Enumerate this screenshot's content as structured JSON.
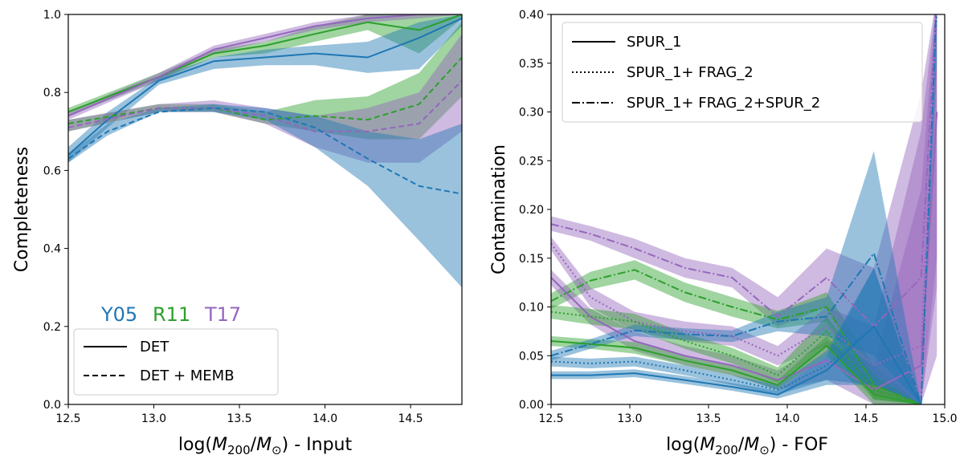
{
  "chart_data": [
    {
      "type": "line",
      "title": "",
      "ylabel": "Completeness",
      "xlabel_parts": [
        "log(",
        "M",
        "200",
        "/",
        "M",
        "⊙",
        ") - Input"
      ],
      "xlim": [
        12.5,
        14.8
      ],
      "ylim": [
        0.0,
        1.0
      ],
      "xticks": [
        12.5,
        13.0,
        13.5,
        14.0,
        14.5
      ],
      "xtick_labels": [
        "12.5",
        "13.0",
        "13.5",
        "14.0",
        "14.5"
      ],
      "yticks": [
        0.0,
        0.2,
        0.4,
        0.6,
        0.8,
        1.0
      ],
      "ytick_labels": [
        "0.0",
        "0.2",
        "0.4",
        "0.6",
        "0.8",
        "1.0"
      ],
      "model_labels": [
        {
          "text": "Y05",
          "color": "#1f77b4"
        },
        {
          "text": "R11",
          "color": "#2ca02c"
        },
        {
          "text": "T17",
          "color": "#9467bd"
        }
      ],
      "legend": {
        "placement": "lower-left",
        "entries": [
          {
            "label": "DET",
            "style": "solid"
          },
          {
            "label": "DET + MEMB",
            "style": "dashed"
          }
        ]
      },
      "series": [
        {
          "name": "R11 DET",
          "color": "#2ca02c",
          "style": "solid",
          "x": [
            12.5,
            13.03,
            13.35,
            13.65,
            13.94,
            14.25,
            14.55,
            14.8
          ],
          "y": [
            0.75,
            0.84,
            0.9,
            0.92,
            0.95,
            0.98,
            0.96,
            1.0
          ],
          "lower": [
            0.74,
            0.83,
            0.89,
            0.9,
            0.93,
            0.96,
            0.9,
            0.99
          ],
          "upper": [
            0.76,
            0.85,
            0.91,
            0.93,
            0.97,
            1.0,
            1.0,
            1.0
          ]
        },
        {
          "name": "T17 DET",
          "color": "#9467bd",
          "style": "solid",
          "x": [
            12.5,
            13.03,
            13.35,
            13.65,
            13.94,
            14.25,
            14.55,
            14.8
          ],
          "y": [
            0.74,
            0.84,
            0.91,
            0.94,
            0.97,
            0.99,
            1.0,
            1.0
          ],
          "lower": [
            0.73,
            0.83,
            0.9,
            0.93,
            0.96,
            0.98,
            0.99,
            1.0
          ],
          "upper": [
            0.75,
            0.85,
            0.92,
            0.95,
            0.98,
            1.0,
            1.0,
            1.0
          ]
        },
        {
          "name": "Y05 DET",
          "color": "#1f77b4",
          "style": "solid",
          "x": [
            12.5,
            12.73,
            13.03,
            13.35,
            13.65,
            13.94,
            14.25,
            14.55,
            14.8
          ],
          "y": [
            0.64,
            0.73,
            0.83,
            0.88,
            0.89,
            0.9,
            0.89,
            0.94,
            0.99
          ],
          "lower": [
            0.62,
            0.71,
            0.82,
            0.86,
            0.87,
            0.87,
            0.85,
            0.86,
            0.97
          ],
          "upper": [
            0.66,
            0.75,
            0.84,
            0.89,
            0.91,
            0.92,
            0.93,
            0.98,
            1.0
          ]
        },
        {
          "name": "R11 DET + MEMB",
          "color": "#2ca02c",
          "style": "dashed",
          "x": [
            12.5,
            13.03,
            13.35,
            13.65,
            13.94,
            14.25,
            14.55,
            14.8
          ],
          "y": [
            0.72,
            0.76,
            0.76,
            0.73,
            0.74,
            0.73,
            0.77,
            0.89
          ],
          "lower": [
            0.7,
            0.75,
            0.75,
            0.72,
            0.7,
            0.68,
            0.68,
            0.79
          ],
          "upper": [
            0.73,
            0.77,
            0.77,
            0.75,
            0.78,
            0.79,
            0.85,
            0.98
          ]
        },
        {
          "name": "T17 DET + MEMB",
          "color": "#9467bd",
          "style": "dashed",
          "x": [
            12.5,
            13.03,
            13.35,
            13.65,
            13.94,
            14.25,
            14.55,
            14.8
          ],
          "y": [
            0.71,
            0.76,
            0.76,
            0.74,
            0.7,
            0.7,
            0.72,
            0.83
          ],
          "lower": [
            0.7,
            0.75,
            0.75,
            0.72,
            0.66,
            0.62,
            0.62,
            0.7
          ],
          "upper": [
            0.73,
            0.77,
            0.78,
            0.76,
            0.74,
            0.76,
            0.8,
            0.95
          ]
        },
        {
          "name": "Y05 DET + MEMB",
          "color": "#1f77b4",
          "style": "dashed",
          "x": [
            12.5,
            12.73,
            13.03,
            13.35,
            13.65,
            13.94,
            14.25,
            14.55,
            14.8
          ],
          "y": [
            0.63,
            0.7,
            0.75,
            0.76,
            0.75,
            0.71,
            0.63,
            0.56,
            0.54
          ],
          "lower": [
            0.62,
            0.69,
            0.75,
            0.75,
            0.73,
            0.66,
            0.56,
            0.42,
            0.3
          ],
          "upper": [
            0.64,
            0.72,
            0.76,
            0.77,
            0.76,
            0.74,
            0.7,
            0.68,
            0.72
          ]
        }
      ]
    },
    {
      "type": "line",
      "title": "",
      "ylabel": "Contamination",
      "xlabel_parts": [
        "log(",
        "M",
        "200",
        "/",
        "M",
        "⊙",
        ") - FOF"
      ],
      "xlim": [
        12.5,
        15.0
      ],
      "ylim": [
        0.0,
        0.4
      ],
      "xticks": [
        12.5,
        13.0,
        13.5,
        14.0,
        14.5,
        15.0
      ],
      "xtick_labels": [
        "12.5",
        "13.0",
        "13.5",
        "14.0",
        "14.5",
        "15.0"
      ],
      "yticks": [
        0.0,
        0.05,
        0.1,
        0.15,
        0.2,
        0.25,
        0.3,
        0.35,
        0.4
      ],
      "ytick_labels": [
        "0.00",
        "0.05",
        "0.10",
        "0.15",
        "0.20",
        "0.25",
        "0.30",
        "0.35",
        "0.40"
      ],
      "legend": {
        "placement": "upper-left",
        "entries": [
          {
            "label": "SPUR_1",
            "style": "solid"
          },
          {
            "label": "SPUR_1+ FRAG_2",
            "style": "dotted"
          },
          {
            "label": "SPUR_1+ FRAG_2+SPUR_2",
            "style": "dashdot"
          }
        ]
      },
      "series": [
        {
          "name": "T17 SPUR_1+FRAG_2+SPUR_2",
          "color": "#9467bd",
          "style": "dashdot",
          "x": [
            12.5,
            12.75,
            13.03,
            13.35,
            13.65,
            13.94,
            14.25,
            14.55,
            14.85,
            14.95
          ],
          "y": [
            0.185,
            0.175,
            0.16,
            0.14,
            0.13,
            0.09,
            0.13,
            0.08,
            0.13,
            0.42
          ],
          "lower": [
            0.178,
            0.168,
            0.15,
            0.13,
            0.12,
            0.08,
            0.1,
            0.02,
            0.0,
            0.15
          ],
          "upper": [
            0.193,
            0.183,
            0.17,
            0.15,
            0.14,
            0.11,
            0.16,
            0.14,
            0.32,
            0.42
          ]
        },
        {
          "name": "R11 SPUR_1+FRAG_2+SPUR_2",
          "color": "#2ca02c",
          "style": "dashdot",
          "x": [
            12.5,
            12.75,
            13.03,
            13.35,
            13.65,
            13.94,
            14.25,
            14.55,
            14.85
          ],
          "y": [
            0.106,
            0.127,
            0.138,
            0.115,
            0.1,
            0.087,
            0.1,
            0.02,
            0.0
          ],
          "lower": [
            0.098,
            0.118,
            0.128,
            0.105,
            0.09,
            0.078,
            0.085,
            0.005,
            0.0
          ],
          "upper": [
            0.114,
            0.136,
            0.148,
            0.125,
            0.11,
            0.096,
            0.115,
            0.04,
            0.0
          ]
        },
        {
          "name": "T17 SPUR_1+FRAG_2",
          "color": "#9467bd",
          "style": "dotted",
          "x": [
            12.5,
            12.75,
            13.03,
            13.35,
            13.65,
            13.94,
            14.25,
            14.55,
            14.85,
            14.95
          ],
          "y": [
            0.165,
            0.11,
            0.085,
            0.075,
            0.07,
            0.05,
            0.08,
            0.04,
            0.06,
            0.4
          ],
          "lower": [
            0.158,
            0.1,
            0.075,
            0.065,
            0.06,
            0.04,
            0.06,
            0.01,
            0.0,
            0.12
          ],
          "upper": [
            0.172,
            0.12,
            0.095,
            0.085,
            0.08,
            0.06,
            0.1,
            0.08,
            0.28,
            0.42
          ]
        },
        {
          "name": "T17 SPUR_1",
          "color": "#9467bd",
          "style": "solid",
          "x": [
            12.5,
            12.75,
            13.03,
            13.35,
            13.65,
            13.94,
            14.25,
            14.55,
            14.85,
            14.95
          ],
          "y": [
            0.13,
            0.09,
            0.065,
            0.05,
            0.04,
            0.025,
            0.045,
            0.015,
            0.04,
            0.3
          ],
          "lower": [
            0.122,
            0.082,
            0.055,
            0.04,
            0.03,
            0.015,
            0.025,
            0.0,
            0.0,
            0.05
          ],
          "upper": [
            0.138,
            0.098,
            0.075,
            0.06,
            0.05,
            0.035,
            0.065,
            0.04,
            0.22,
            0.42
          ]
        },
        {
          "name": "R11 SPUR_1+FRAG_2",
          "color": "#2ca02c",
          "style": "dotted",
          "x": [
            12.5,
            12.75,
            13.03,
            13.35,
            13.65,
            13.94,
            14.25,
            14.55,
            14.85
          ],
          "y": [
            0.095,
            0.09,
            0.085,
            0.065,
            0.05,
            0.03,
            0.075,
            0.015,
            0.0
          ],
          "lower": [
            0.088,
            0.082,
            0.077,
            0.057,
            0.042,
            0.022,
            0.06,
            0.005,
            0.0
          ],
          "upper": [
            0.102,
            0.098,
            0.093,
            0.073,
            0.058,
            0.038,
            0.09,
            0.03,
            0.0
          ]
        },
        {
          "name": "R11 SPUR_1",
          "color": "#2ca02c",
          "style": "solid",
          "x": [
            12.5,
            12.75,
            13.03,
            13.35,
            13.65,
            13.94,
            14.25,
            14.55,
            14.85
          ],
          "y": [
            0.065,
            0.062,
            0.058,
            0.045,
            0.035,
            0.02,
            0.06,
            0.01,
            0.0
          ],
          "lower": [
            0.06,
            0.057,
            0.052,
            0.04,
            0.03,
            0.015,
            0.05,
            0.0,
            0.0
          ],
          "upper": [
            0.07,
            0.067,
            0.064,
            0.05,
            0.04,
            0.025,
            0.07,
            0.02,
            0.0
          ]
        },
        {
          "name": "Y05 SPUR_1+FRAG_2+SPUR_2",
          "color": "#1f77b4",
          "style": "dashdot",
          "x": [
            12.5,
            12.75,
            13.03,
            13.35,
            13.65,
            13.94,
            14.25,
            14.55,
            14.85,
            14.95
          ],
          "y": [
            0.05,
            0.062,
            0.076,
            0.072,
            0.07,
            0.085,
            0.09,
            0.155,
            0.0,
            0.42
          ],
          "lower": [
            0.045,
            0.057,
            0.07,
            0.066,
            0.064,
            0.075,
            0.07,
            0.05,
            0.0,
            0.35
          ],
          "upper": [
            0.055,
            0.067,
            0.082,
            0.078,
            0.076,
            0.095,
            0.11,
            0.26,
            0.0,
            0.42
          ]
        },
        {
          "name": "Y05 SPUR_1+FRAG_2",
          "color": "#1f77b4",
          "style": "dotted",
          "x": [
            12.5,
            12.75,
            13.03,
            13.35,
            13.65,
            13.94,
            14.25,
            14.55,
            14.85
          ],
          "y": [
            0.044,
            0.042,
            0.044,
            0.035,
            0.025,
            0.015,
            0.04,
            0.08,
            0.0
          ],
          "lower": [
            0.039,
            0.037,
            0.039,
            0.03,
            0.02,
            0.01,
            0.025,
            0.02,
            0.0
          ],
          "upper": [
            0.049,
            0.047,
            0.049,
            0.04,
            0.03,
            0.02,
            0.055,
            0.14,
            0.0
          ]
        },
        {
          "name": "Y05 SPUR_1",
          "color": "#1f77b4",
          "style": "solid",
          "x": [
            12.5,
            12.75,
            13.03,
            13.35,
            13.65,
            13.94,
            14.25,
            14.55,
            14.85
          ],
          "y": [
            0.03,
            0.03,
            0.032,
            0.025,
            0.018,
            0.01,
            0.035,
            0.08,
            0.0
          ],
          "lower": [
            0.026,
            0.026,
            0.028,
            0.021,
            0.014,
            0.006,
            0.02,
            0.02,
            0.0
          ],
          "upper": [
            0.034,
            0.034,
            0.036,
            0.029,
            0.022,
            0.014,
            0.05,
            0.14,
            0.0
          ]
        }
      ]
    }
  ]
}
